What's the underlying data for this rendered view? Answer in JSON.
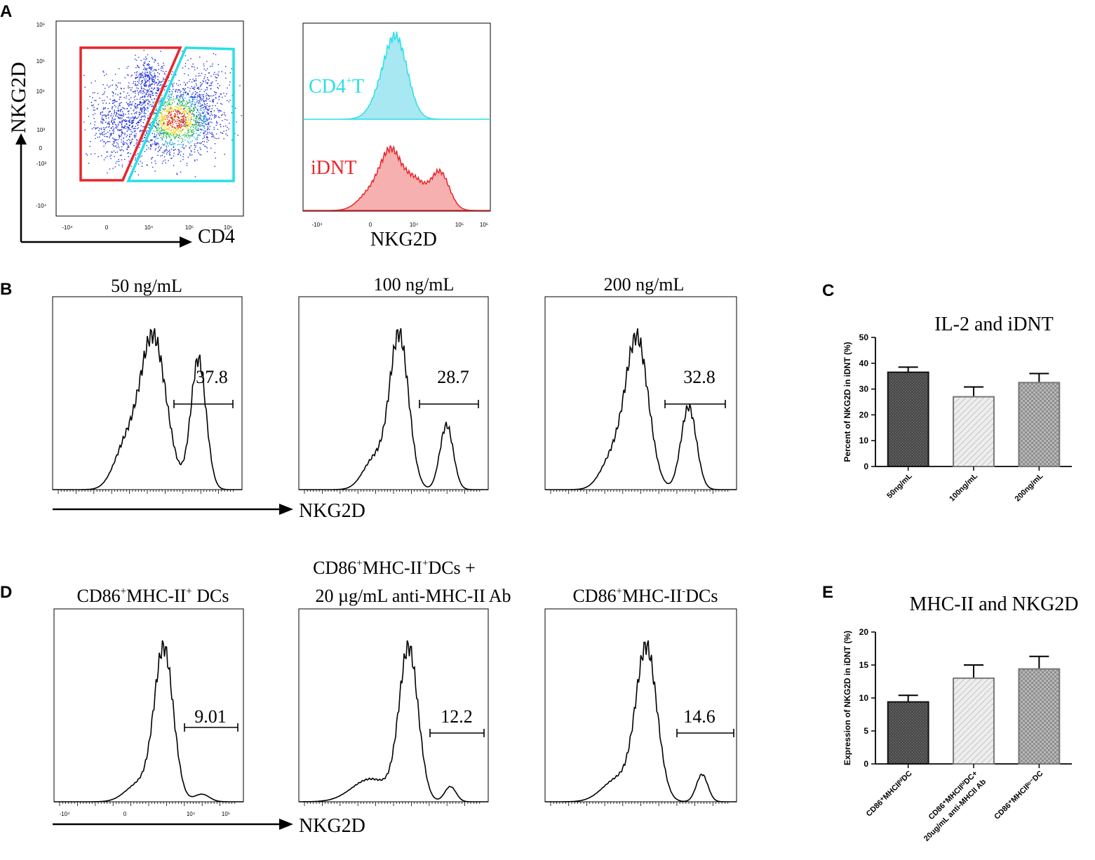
{
  "colors": {
    "red": "#e8262b",
    "cyan": "#28dfe6",
    "cyan_fill": "#a8e8f2",
    "red_fill": "#f6b0b0",
    "bar1": "#555555",
    "bar2": "#dedede",
    "bar3": "#a9a9a9"
  },
  "panelA": {
    "letter": "A",
    "scatter": {
      "ylabel": "NKG2D",
      "xlabel": "CD4",
      "yticks": [
        "10⁶",
        "10⁵",
        "10⁴",
        "10³",
        "0",
        "-10³",
        "-10⁴"
      ],
      "xticks": [
        "-10⁴",
        "0",
        "10⁴",
        "10⁵",
        "10⁶"
      ]
    },
    "histogram": {
      "xlabel": "NKG2D",
      "top_label": "CD4",
      "top_sup": "+",
      "top_suffix": "T",
      "bottom_label": "iDNT",
      "xticks": [
        "-10⁴",
        "0",
        "10⁴",
        "10⁵",
        "10⁶"
      ]
    }
  },
  "panelB": {
    "letter": "B",
    "xlabel": "NKG2D",
    "plots": [
      {
        "title": "50 ng/mL",
        "value": "37.8"
      },
      {
        "title": "100 ng/mL",
        "value": "28.7"
      },
      {
        "title": "200 ng/mL",
        "value": "32.8"
      }
    ]
  },
  "panelD": {
    "letter": "D",
    "xlabel": "NKG2D",
    "xticks": [
      "-10⁴",
      "0",
      "10⁴",
      "10⁵"
    ],
    "plots": [
      {
        "title_parts": [
          "CD86",
          "+",
          "MHC-II",
          "+",
          " DCs"
        ],
        "value": "9.01"
      },
      {
        "title_line1_parts": [
          "CD86",
          "+",
          "MHC-II",
          "+",
          "DCs +"
        ],
        "title_line2": "20 µg/mL anti-MHC-II Ab",
        "value": "12.2"
      },
      {
        "title_parts": [
          "CD86",
          "+",
          "MHC-II",
          "-",
          "DCs"
        ],
        "value": "14.6"
      }
    ]
  },
  "chart_data": [
    {
      "panel": "C",
      "type": "bar",
      "title": "IL-2 and iDNT",
      "ylabel": "Percent of NKG2D in iDNT (%)",
      "categories": [
        "50ng/mL",
        "100ng/mL",
        "200ng/mL"
      ],
      "values": [
        36.5,
        27,
        32.5
      ],
      "errors": [
        2,
        3.8,
        3.5
      ],
      "ylim": [
        0,
        50
      ],
      "yticks": [
        "0",
        "10",
        "20",
        "30",
        "40",
        "50"
      ]
    },
    {
      "panel": "E",
      "type": "bar",
      "title": "MHC-II and NKG2D",
      "ylabel": "Expression of NKG2D in iDNT (%)",
      "categories": [
        "CD86⁺MHCIIʰⁱDC",
        "CD86⁺MHCIIʰⁱDC+ 20ug/mL anti-MHCII Ab",
        "CD86⁺MHCIIˡᵒ⁻DC"
      ],
      "values": [
        9.4,
        13,
        14.4
      ],
      "errors": [
        1,
        2,
        1.9
      ],
      "ylim": [
        0,
        20
      ],
      "yticks": [
        "0",
        "5",
        "10",
        "15",
        "20"
      ]
    }
  ]
}
